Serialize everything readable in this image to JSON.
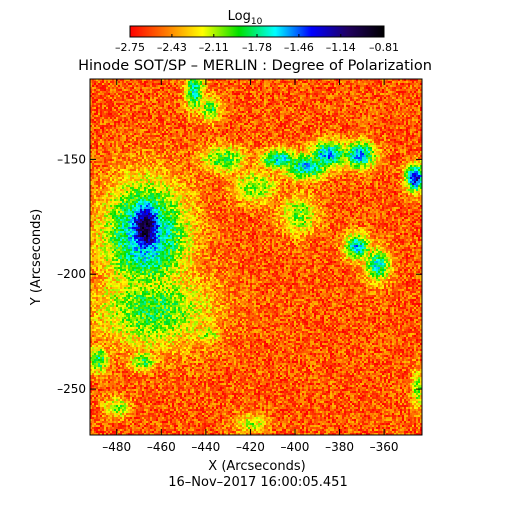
{
  "chart_data": {
    "type": "heatmap",
    "title": "Hinode SOT/SP – MERLIN : Degree of Polarization",
    "xlabel": "X (Arcseconds)",
    "ylabel": "Y (Arcseconds)",
    "timestamp": "16–Nov–2017 16:00:05.451",
    "xlim": [
      -492,
      -343
    ],
    "ylim": [
      -270,
      -115
    ],
    "xticks": [
      -480,
      -460,
      -440,
      -420,
      -400,
      -380,
      -360
    ],
    "xtick_labels": [
      "–480",
      "–460",
      "–440",
      "–420",
      "–400",
      "–380",
      "–360"
    ],
    "yticks": [
      -250,
      -200,
      -150
    ],
    "ytick_labels": [
      "–250",
      "–200",
      "–150"
    ],
    "colorbar": {
      "label_base": "Log",
      "label_sub": "10",
      "range": [
        -2.75,
        -0.81
      ],
      "ticks": [
        -2.75,
        -2.43,
        -2.11,
        -1.78,
        -1.46,
        -1.14,
        -0.81
      ],
      "tick_labels": [
        "–2.75",
        "–2.43",
        "–2.11",
        "–1.78",
        "–1.46",
        "–1.14",
        "–0.81"
      ],
      "colormap": [
        "#ff0000",
        "#ff7a00",
        "#ffff00",
        "#00e000",
        "#00ffff",
        "#0000ff",
        "#200060",
        "#000000"
      ]
    },
    "features": [
      {
        "x": -467,
        "y": -180,
        "log10_value": -0.95,
        "sx": 6,
        "sy": 10,
        "kind": "strong polarization core"
      },
      {
        "x": -467,
        "y": -183,
        "log10_value": -1.5,
        "sx": 13,
        "sy": 16,
        "kind": "halo"
      },
      {
        "x": -464,
        "y": -215,
        "log10_value": -1.9,
        "sx": 18,
        "sy": 12,
        "kind": "halo"
      },
      {
        "x": -395,
        "y": -153,
        "log10_value": -1.6,
        "sx": 7,
        "sy": 4,
        "kind": "network"
      },
      {
        "x": -407,
        "y": -150,
        "log10_value": -1.6,
        "sx": 6,
        "sy": 3,
        "kind": "network"
      },
      {
        "x": -385,
        "y": -148,
        "log10_value": -1.5,
        "sx": 6,
        "sy": 4,
        "kind": "network"
      },
      {
        "x": -371,
        "y": -148,
        "log10_value": -1.5,
        "sx": 5,
        "sy": 4,
        "kind": "network"
      },
      {
        "x": -346,
        "y": -158,
        "log10_value": -1.2,
        "sx": 3,
        "sy": 4,
        "kind": "network"
      },
      {
        "x": -372,
        "y": -188,
        "log10_value": -1.6,
        "sx": 4,
        "sy": 4,
        "kind": "network"
      },
      {
        "x": -363,
        "y": -196,
        "log10_value": -1.7,
        "sx": 4,
        "sy": 5,
        "kind": "network"
      },
      {
        "x": -445,
        "y": -120,
        "log10_value": -1.7,
        "sx": 3,
        "sy": 6,
        "kind": "network"
      },
      {
        "x": -432,
        "y": -150,
        "log10_value": -1.9,
        "sx": 7,
        "sy": 4,
        "kind": "network"
      },
      {
        "x": -418,
        "y": -162,
        "log10_value": -2.0,
        "sx": 7,
        "sy": 5,
        "kind": "network"
      },
      {
        "x": -398,
        "y": -174,
        "log10_value": -2.0,
        "sx": 6,
        "sy": 6,
        "kind": "network"
      },
      {
        "x": -438,
        "y": -128,
        "log10_value": -1.9,
        "sx": 3,
        "sy": 4,
        "kind": "network"
      },
      {
        "x": -488,
        "y": -237,
        "log10_value": -1.8,
        "sx": 3,
        "sy": 4,
        "kind": "network"
      },
      {
        "x": -468,
        "y": -238,
        "log10_value": -1.9,
        "sx": 4,
        "sy": 3,
        "kind": "network"
      },
      {
        "x": -440,
        "y": -226,
        "log10_value": -2.1,
        "sx": 5,
        "sy": 3,
        "kind": "network"
      },
      {
        "x": -480,
        "y": -258,
        "log10_value": -2.0,
        "sx": 4,
        "sy": 3,
        "kind": "network"
      },
      {
        "x": -420,
        "y": -265,
        "log10_value": -2.1,
        "sx": 5,
        "sy": 3,
        "kind": "network"
      },
      {
        "x": -345,
        "y": -250,
        "log10_value": -2.0,
        "sx": 2,
        "sy": 6,
        "kind": "network"
      }
    ],
    "background_log10_value": -2.55,
    "grid": false,
    "legend": "colorbar top"
  }
}
